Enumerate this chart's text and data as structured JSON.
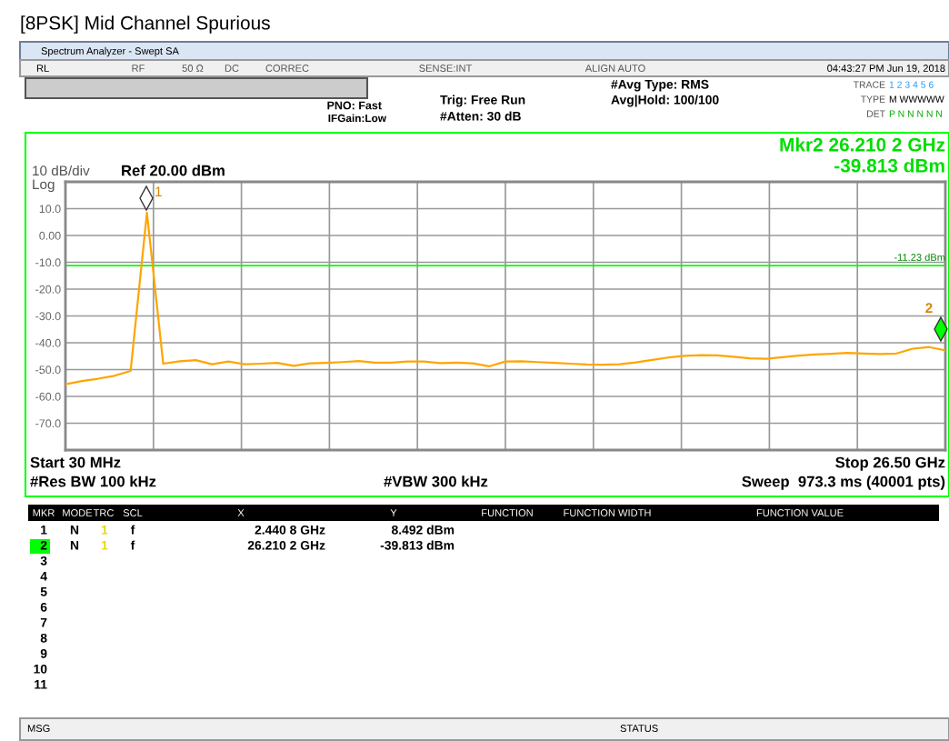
{
  "chart_data": {
    "type": "line",
    "title": "[8PSK] Mid Channel Spurious",
    "categories": [
      null,
      null,
      null,
      null,
      null,
      null,
      null,
      null,
      null,
      null,
      null,
      null,
      null,
      null,
      null,
      null,
      null,
      null,
      null,
      null,
      null,
      null,
      null,
      null,
      null,
      null,
      null,
      null,
      null,
      null,
      null,
      null,
      null,
      null,
      null,
      null,
      null,
      null,
      null,
      null,
      null,
      null,
      null,
      null,
      null,
      null,
      null,
      null,
      null,
      null,
      null,
      null,
      null,
      null,
      null
    ],
    "series": [
      {
        "color": "#ffa500",
        "values": [
          -55.5,
          -54.3,
          -53.4,
          -52.3,
          -50.5,
          8.492,
          -47.8,
          -46.9,
          -46.5,
          -48.0,
          -47.0,
          -48.0,
          -47.8,
          -47.5,
          -48.6,
          -47.7,
          -47.5,
          -47.2,
          -46.8,
          -47.4,
          -47.4,
          -47.0,
          -47.0,
          -47.6,
          -47.4,
          -47.7,
          -48.8,
          -47.0,
          -46.9,
          -47.2,
          -47.5,
          -47.8,
          -48.1,
          -48.2,
          -48.0,
          -47.3,
          -46.4,
          -45.5,
          -44.9,
          -44.6,
          -44.7,
          -45.2,
          -45.8,
          -46.0,
          -45.4,
          -44.8,
          -44.4,
          -44.1,
          -43.8,
          -44.0,
          -44.2,
          -44.0,
          -42.2,
          -41.6,
          -42.8
        ]
      }
    ],
    "ylim": [
      -80,
      20
    ],
    "yticks": [
      {
        "value": 10,
        "label": "10.0"
      },
      {
        "value": 0,
        "label": "0.00"
      },
      {
        "value": -10,
        "label": "-10.0"
      },
      {
        "value": -20,
        "label": "-20.0"
      },
      {
        "value": -30,
        "label": "-30.0"
      },
      {
        "value": -40,
        "label": "-40.0"
      },
      {
        "value": -50,
        "label": "-50.0"
      },
      {
        "value": -60,
        "label": "-60.0"
      },
      {
        "value": -70,
        "label": "-70.0"
      }
    ],
    "tick_labels": "y",
    "grid": true,
    "ref_lines": [
      {
        "axis": "y",
        "value": -11.23,
        "label": "-11.23 dBm",
        "color": "#00ff00"
      }
    ],
    "annotations": [
      "1",
      "2",
      "Spectrum Analyzer - Swept SA",
      "RL",
      "RF",
      "50 Ω",
      "DC",
      "CORREC",
      "SENSE:INT",
      "ALIGN AUTO",
      "04:43:27 PM Jun 19, 2018",
      "PNO: Fast",
      "IFGain:Low",
      "Trig: Free Run",
      "#Atten: 30 dB",
      "#Avg Type: RMS",
      "Avg|Hold: 100/100",
      "TRACE",
      "1 2 3 4 5 6",
      "TYPE",
      "M WWWWW",
      "DET",
      "P N N N N N",
      "10 dB/div",
      "Log",
      "Ref 20.00 dBm",
      "Mkr2 26.210 2 GHz",
      "-39.813 dBm",
      "Start 30 MHz",
      "Stop 26.50 GHz",
      "#Res BW 100 kHz",
      "#VBW 300 kHz",
      "Sweep  973.3 ms (40001 pts)",
      "MKR",
      "MODE",
      "TRC",
      "SCL",
      "X",
      "Y",
      "FUNCTION",
      "FUNCTION WIDTH",
      "FUNCTION VALUE",
      "1",
      "N",
      "1",
      "f",
      "2.440 8 GHz",
      "8.492 dBm",
      "2",
      "N",
      "1",
      "f",
      "26.210 2 GHz",
      "-39.813 dBm",
      "3",
      "4",
      "5",
      "6",
      "7",
      "8",
      "9",
      "10",
      "11",
      "MSG",
      "STATUS"
    ]
  }
}
